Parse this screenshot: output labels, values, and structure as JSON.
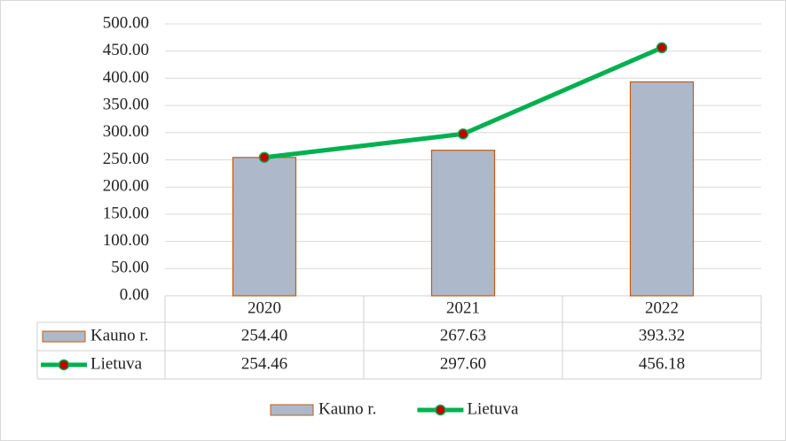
{
  "chart_data": {
    "type": "bar-line",
    "categories": [
      "2020",
      "2021",
      "2022"
    ],
    "series": [
      {
        "name": "Kauno r.",
        "type": "bar",
        "color": "#adb9ca",
        "edge_color": "#c55a11",
        "values": [
          254.4,
          267.63,
          393.32
        ],
        "value_labels": [
          "254.40",
          "267.63",
          "393.32"
        ]
      },
      {
        "name": "Lietuva",
        "type": "line",
        "color": "#00b050",
        "marker_color": "#c00000",
        "values": [
          254.46,
          297.6,
          456.18
        ],
        "value_labels": [
          "254.46",
          "297.60",
          "456.18"
        ]
      }
    ],
    "ylim": [
      0,
      500
    ],
    "yticks": [
      {
        "value": 0,
        "label": "0.00"
      },
      {
        "value": 50,
        "label": "50.00"
      },
      {
        "value": 100,
        "label": "100.00"
      },
      {
        "value": 150,
        "label": "150.00"
      },
      {
        "value": 200,
        "label": "200.00"
      },
      {
        "value": 250,
        "label": "250.00"
      },
      {
        "value": 300,
        "label": "300.00"
      },
      {
        "value": 350,
        "label": "350.00"
      },
      {
        "value": 400,
        "label": "400.00"
      },
      {
        "value": 450,
        "label": "450.00"
      },
      {
        "value": 500,
        "label": "500.00"
      }
    ],
    "grid": true,
    "data_table": true,
    "legend": "bottom"
  }
}
